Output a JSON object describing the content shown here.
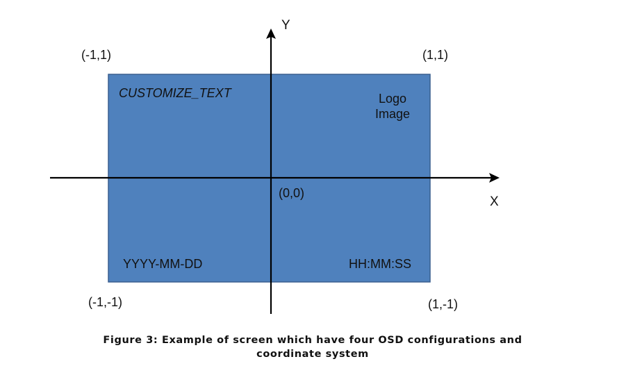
{
  "colors": {
    "screen_fill": "#4f81bd",
    "screen_border": "#3a5f8f",
    "axis": "#000000",
    "text": "#111111"
  },
  "axes": {
    "x_label": "X",
    "y_label": "Y",
    "origin_label": "(0,0)"
  },
  "corners": {
    "top_left": "(-1,1)",
    "top_right": "(1,1)",
    "bottom_left": "(-1,-1)",
    "bottom_right": "(1,-1)"
  },
  "osd": {
    "customize_text": "CUSTOMIZE_TEXT",
    "logo_line1": "Logo",
    "logo_line2": "Image",
    "date": "YYYY-MM-DD",
    "time": "HH:MM:SS"
  },
  "caption": "Figure 3: Example of screen which have four OSD configurations and coordinate system"
}
